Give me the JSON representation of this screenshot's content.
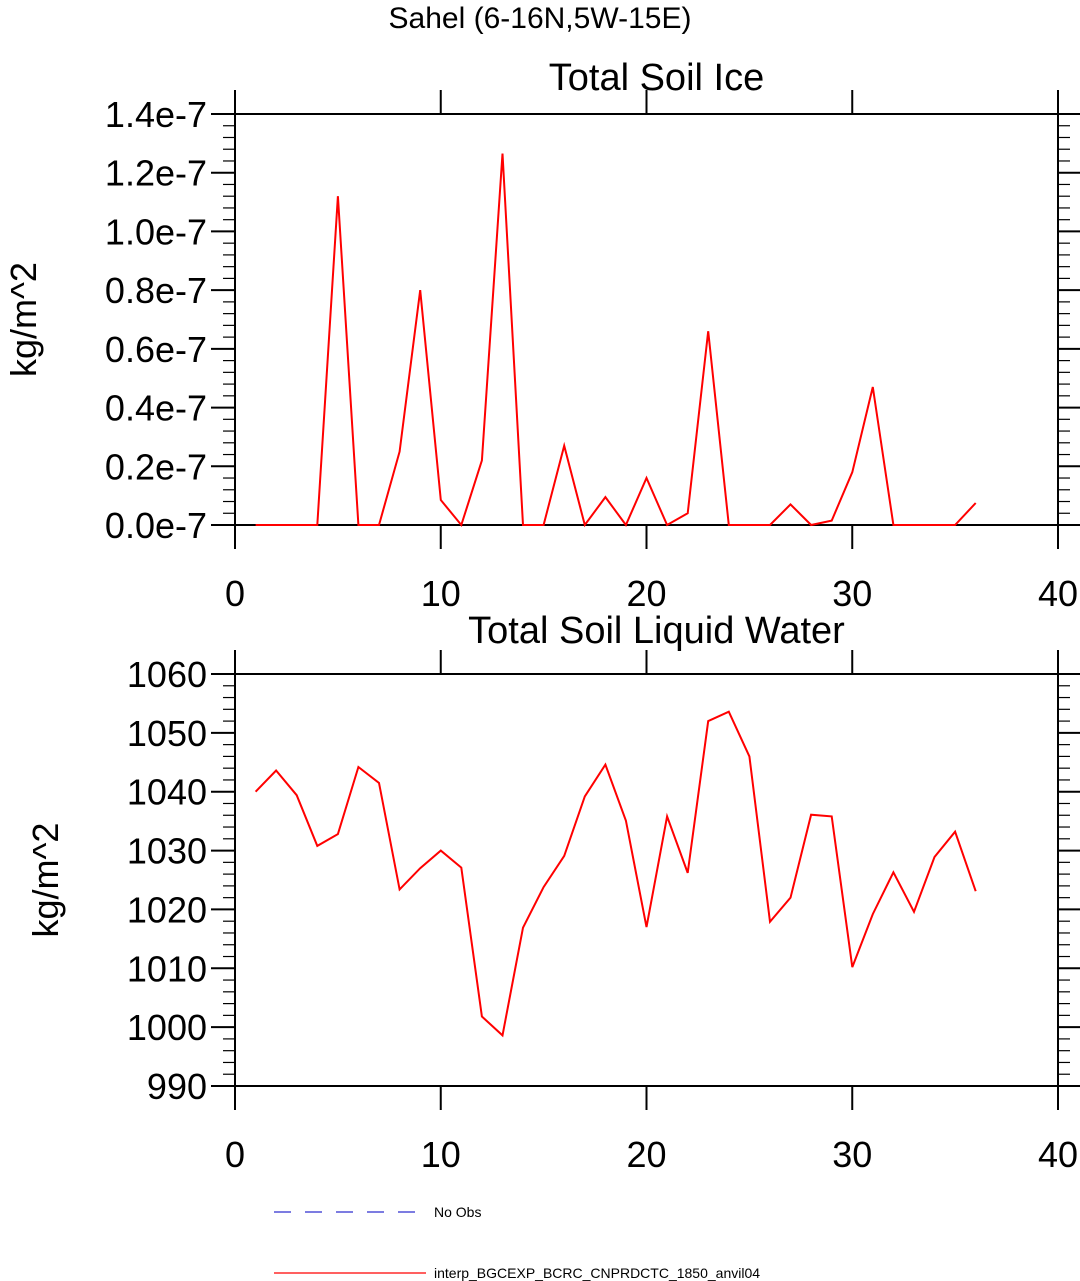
{
  "suptitle": "Sahel (6-16N,5W-15E)",
  "colors": {
    "series": "#ff0000",
    "no_obs": "#2f2fcf",
    "axis": "#000000"
  },
  "legend": {
    "items": [
      {
        "label": "No Obs",
        "style": "dashed",
        "color": "#2f2fcf"
      },
      {
        "label": "interp_BGCEXP_BCRC_CNPRDCTC_1850_anvil04",
        "style": "solid",
        "color": "#ff0000"
      }
    ]
  },
  "chart_data": [
    {
      "type": "line",
      "title": "Total Soil Ice",
      "ylabel": "kg/m^2",
      "xlim": [
        0,
        40
      ],
      "ylim": [
        0,
        1.4e-07
      ],
      "xticks": [
        0,
        10,
        20,
        30,
        40
      ],
      "xtick_labels": [
        "0",
        "10",
        "20",
        "30",
        "40"
      ],
      "yticks": [
        0,
        2e-08,
        4e-08,
        6e-08,
        8e-08,
        1e-07,
        1.2e-07,
        1.4e-07
      ],
      "ytick_labels": [
        "0.0e-7",
        "0.2e-7",
        "0.4e-7",
        "0.6e-7",
        "0.8e-7",
        "1.0e-7",
        "1.2e-7",
        "1.4e-7"
      ],
      "series": [
        {
          "x": [
            1,
            2,
            3,
            4,
            5,
            6,
            7,
            8,
            9,
            10,
            11,
            12,
            13,
            14,
            15,
            16,
            17,
            18,
            19,
            20,
            21,
            22,
            23,
            24,
            25,
            26,
            27,
            28,
            29,
            30,
            31,
            32,
            33,
            34,
            35,
            36
          ],
          "values": [
            0,
            0,
            0,
            0,
            1.12e-07,
            0,
            0,
            2.5e-08,
            8e-08,
            8.5e-09,
            0,
            2.2e-08,
            1.265e-07,
            0,
            0,
            2.7e-08,
            0,
            9.5e-09,
            0,
            1.6e-08,
            0,
            4e-09,
            6.6e-08,
            0,
            0,
            0,
            7e-09,
            0,
            1.5e-09,
            1.8e-08,
            4.7e-08,
            0,
            0,
            0,
            0,
            7.5e-09
          ]
        }
      ]
    },
    {
      "type": "line",
      "title": "Total Soil Liquid Water",
      "ylabel": "kg/m^2",
      "xlim": [
        0,
        40
      ],
      "ylim": [
        990,
        1060
      ],
      "xticks": [
        0,
        10,
        20,
        30,
        40
      ],
      "xtick_labels": [
        "0",
        "10",
        "20",
        "30",
        "40"
      ],
      "yticks": [
        990,
        1000,
        1010,
        1020,
        1030,
        1040,
        1050,
        1060
      ],
      "ytick_labels": [
        "990",
        "1000",
        "1010",
        "1020",
        "1030",
        "1040",
        "1050",
        "1060"
      ],
      "series": [
        {
          "x": [
            1,
            2,
            3,
            4,
            5,
            6,
            7,
            8,
            9,
            10,
            11,
            12,
            13,
            14,
            15,
            16,
            17,
            18,
            19,
            20,
            21,
            22,
            23,
            24,
            25,
            26,
            27,
            28,
            29,
            30,
            31,
            32,
            33,
            34,
            35,
            36
          ],
          "values": [
            1040.0,
            1043.6,
            1039.4,
            1030.8,
            1032.8,
            1044.2,
            1041.5,
            1023.4,
            1027.0,
            1030.0,
            1027.1,
            1001.8,
            998.6,
            1016.9,
            1023.8,
            1029.1,
            1039.2,
            1044.6,
            1035.1,
            1017.0,
            1035.8,
            1026.2,
            1052.0,
            1053.6,
            1046.0,
            1017.9,
            1022.0,
            1036.1,
            1035.8,
            1010.2,
            1019.2,
            1026.3,
            1019.6,
            1028.9,
            1033.2,
            1023.1
          ]
        }
      ]
    }
  ]
}
